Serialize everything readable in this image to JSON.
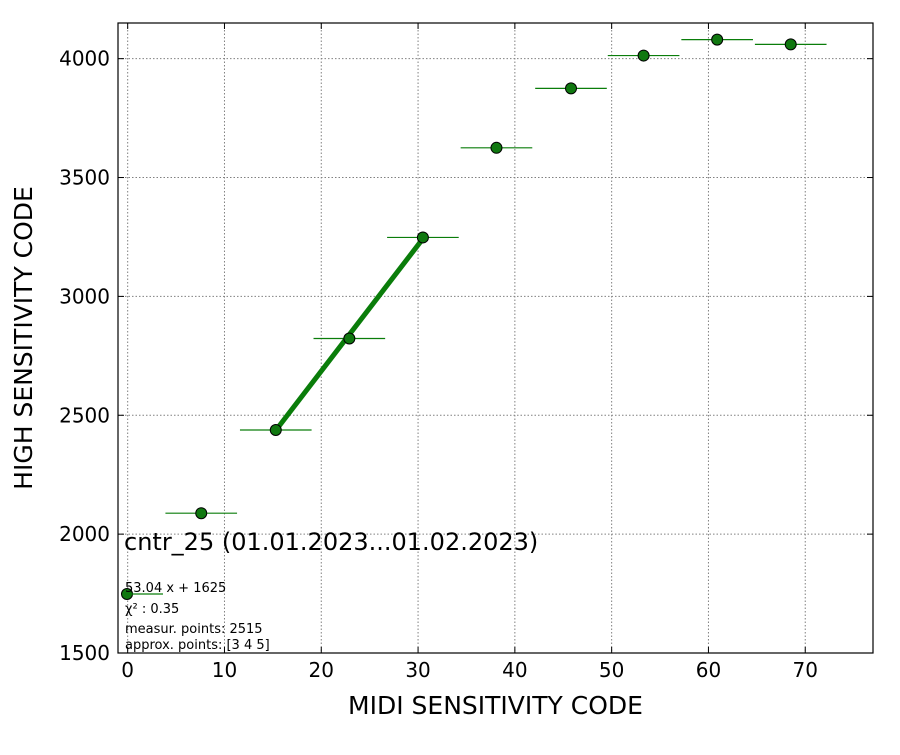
{
  "chart_data": {
    "type": "scatter",
    "title": "cntr_25 (01.01.2023...01.02.2023)",
    "xlabel": "MIDI SENSITIVITY CODE",
    "ylabel": "HIGH SENSITIVITY CODE",
    "xlim": [
      -1,
      77
    ],
    "ylim": [
      1500,
      4150
    ],
    "xticks": [
      0,
      10,
      20,
      30,
      40,
      50,
      60,
      70
    ],
    "yticks": [
      1500,
      2000,
      2500,
      3000,
      3500,
      4000
    ],
    "grid": true,
    "colors": {
      "marker": "#107810",
      "marker_edge": "#000000",
      "line": "#0a7d0a",
      "grid": "#808080"
    },
    "series": [
      {
        "x": [
          7.6,
          15.3,
          22.9,
          30.5,
          38.1,
          45.8,
          53.3,
          60.9,
          68.5
        ],
        "y": [
          2088,
          2438,
          2823,
          3248,
          3625,
          3875,
          4013,
          4080,
          4060
        ],
        "xerr": [
          3.7,
          3.7,
          3.7,
          3.7,
          3.7,
          3.7,
          3.7,
          3.7,
          3.7
        ]
      }
    ],
    "fit": {
      "slope": 53.04,
      "intercept": 1625,
      "x_range": [
        15.3,
        30.5
      ]
    },
    "legend": {
      "placement": "lower-left",
      "lines": [
        "53.04 x + 1625",
        "χ² : 0.35",
        "measur. points: 2515",
        "approx. points: [3 4 5]"
      ]
    }
  }
}
